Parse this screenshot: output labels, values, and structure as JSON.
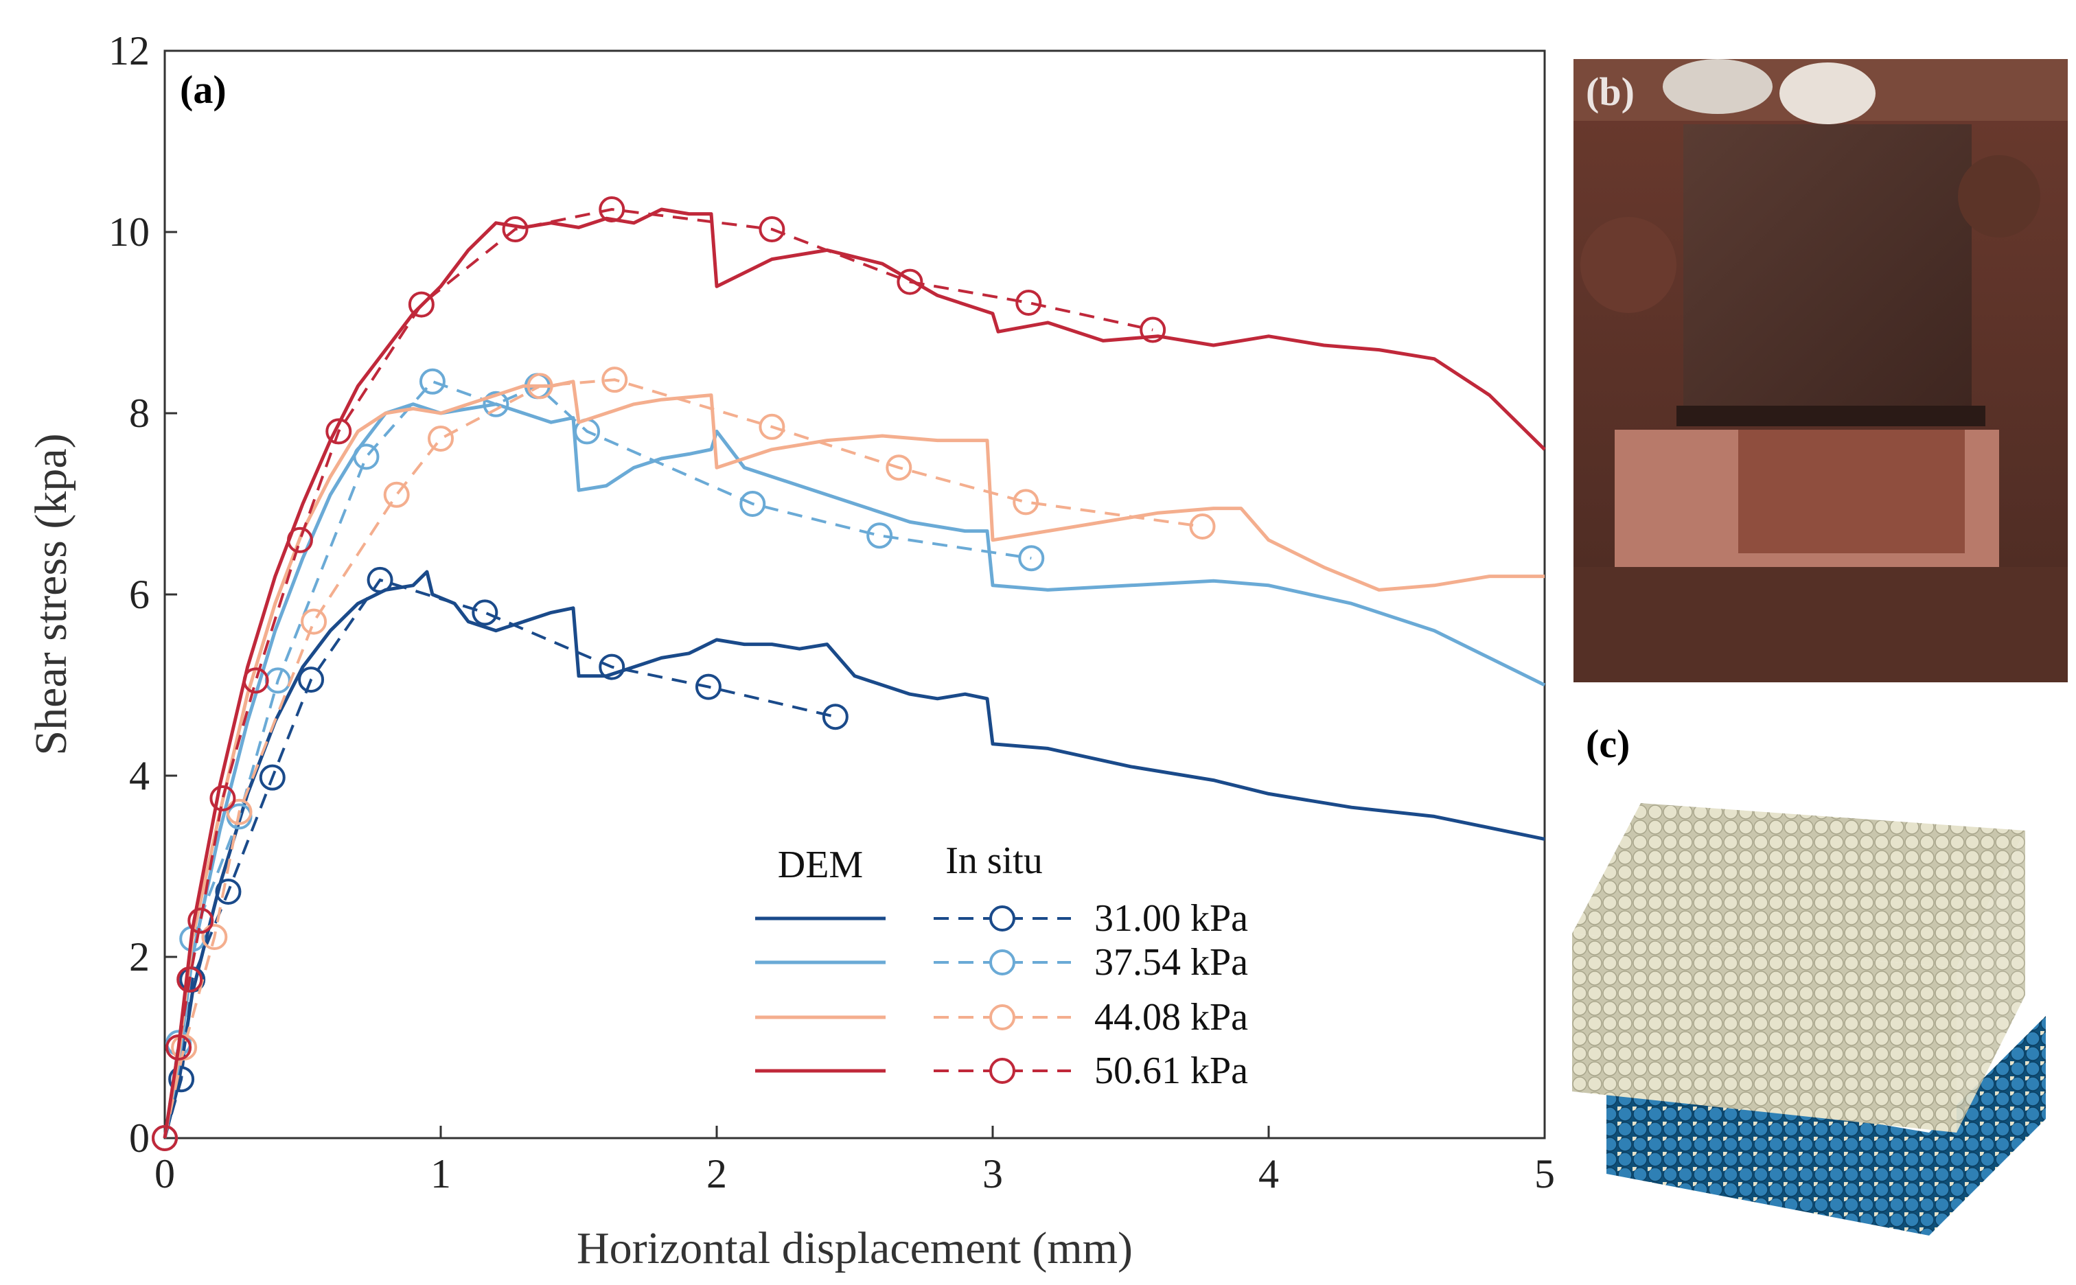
{
  "panels": {
    "a_label": "(a)",
    "b_label": "(b)",
    "c_label": "(c)"
  },
  "legend": {
    "dem_header": "DEM",
    "insitu_header": "In situ"
  },
  "colors": {
    "s31": "#1a4a8a",
    "s37": "#6aaad6",
    "s44": "#f4ae8e",
    "s50": "#c0283a"
  },
  "chart_data": {
    "type": "line",
    "title": "",
    "xlabel": "Horizontal displacement (mm)",
    "ylabel": "Shear stress (kpa)",
    "xlim": [
      0,
      5
    ],
    "ylim": [
      0,
      12
    ],
    "xticks": [
      0,
      1,
      2,
      3,
      4,
      5
    ],
    "yticks": [
      0,
      2,
      4,
      6,
      8,
      10,
      12
    ],
    "series": [
      {
        "name": "31.00 kPa",
        "color": "#1a4a8a",
        "dem": [
          [
            0,
            0
          ],
          [
            0.05,
            0.6
          ],
          [
            0.1,
            1.6
          ],
          [
            0.2,
            2.8
          ],
          [
            0.3,
            3.8
          ],
          [
            0.4,
            4.6
          ],
          [
            0.5,
            5.2
          ],
          [
            0.6,
            5.6
          ],
          [
            0.7,
            5.9
          ],
          [
            0.8,
            6.05
          ],
          [
            0.9,
            6.1
          ],
          [
            0.95,
            6.25
          ],
          [
            0.97,
            6.0
          ],
          [
            1.05,
            5.9
          ],
          [
            1.1,
            5.7
          ],
          [
            1.2,
            5.6
          ],
          [
            1.3,
            5.7
          ],
          [
            1.4,
            5.8
          ],
          [
            1.48,
            5.85
          ],
          [
            1.5,
            5.1
          ],
          [
            1.6,
            5.1
          ],
          [
            1.7,
            5.2
          ],
          [
            1.8,
            5.3
          ],
          [
            1.9,
            5.35
          ],
          [
            2.0,
            5.5
          ],
          [
            2.1,
            5.45
          ],
          [
            2.2,
            5.45
          ],
          [
            2.3,
            5.4
          ],
          [
            2.4,
            5.45
          ],
          [
            2.5,
            5.1
          ],
          [
            2.6,
            5.0
          ],
          [
            2.7,
            4.9
          ],
          [
            2.8,
            4.85
          ],
          [
            2.9,
            4.9
          ],
          [
            2.98,
            4.85
          ],
          [
            3.0,
            4.35
          ],
          [
            3.2,
            4.3
          ],
          [
            3.5,
            4.1
          ],
          [
            3.8,
            3.95
          ],
          [
            4.0,
            3.8
          ],
          [
            4.3,
            3.65
          ],
          [
            4.6,
            3.55
          ],
          [
            5.0,
            3.3
          ]
        ],
        "insitu": [
          [
            0,
            0
          ],
          [
            0.06,
            0.65
          ],
          [
            0.1,
            1.75
          ],
          [
            0.23,
            2.72
          ],
          [
            0.39,
            3.98
          ],
          [
            0.53,
            5.06
          ],
          [
            0.78,
            6.16
          ],
          [
            1.16,
            5.8
          ],
          [
            1.62,
            5.2
          ],
          [
            1.97,
            4.98
          ],
          [
            2.43,
            4.65
          ]
        ]
      },
      {
        "name": "37.54 kPa",
        "color": "#6aaad6",
        "dem": [
          [
            0,
            0
          ],
          [
            0.05,
            0.8
          ],
          [
            0.1,
            2.0
          ],
          [
            0.2,
            3.4
          ],
          [
            0.3,
            4.6
          ],
          [
            0.4,
            5.6
          ],
          [
            0.5,
            6.4
          ],
          [
            0.6,
            7.1
          ],
          [
            0.7,
            7.6
          ],
          [
            0.8,
            8.0
          ],
          [
            0.9,
            8.1
          ],
          [
            1.0,
            8.0
          ],
          [
            1.1,
            8.05
          ],
          [
            1.2,
            8.1
          ],
          [
            1.3,
            8.0
          ],
          [
            1.4,
            7.9
          ],
          [
            1.48,
            7.95
          ],
          [
            1.5,
            7.15
          ],
          [
            1.6,
            7.2
          ],
          [
            1.7,
            7.4
          ],
          [
            1.8,
            7.5
          ],
          [
            1.9,
            7.55
          ],
          [
            1.98,
            7.6
          ],
          [
            2.0,
            7.8
          ],
          [
            2.1,
            7.4
          ],
          [
            2.3,
            7.2
          ],
          [
            2.5,
            7.0
          ],
          [
            2.7,
            6.8
          ],
          [
            2.9,
            6.7
          ],
          [
            2.98,
            6.7
          ],
          [
            3.0,
            6.1
          ],
          [
            3.2,
            6.05
          ],
          [
            3.5,
            6.1
          ],
          [
            3.8,
            6.15
          ],
          [
            4.0,
            6.1
          ],
          [
            4.3,
            5.9
          ],
          [
            4.6,
            5.6
          ],
          [
            4.8,
            5.3
          ],
          [
            5.0,
            5.0
          ]
        ],
        "insitu": [
          [
            0,
            0
          ],
          [
            0.05,
            1.05
          ],
          [
            0.1,
            2.2
          ],
          [
            0.27,
            3.55
          ],
          [
            0.41,
            5.05
          ],
          [
            0.73,
            7.52
          ],
          [
            0.97,
            8.35
          ],
          [
            1.2,
            8.1
          ],
          [
            1.35,
            8.3
          ],
          [
            1.53,
            7.8
          ],
          [
            2.13,
            7.0
          ],
          [
            2.59,
            6.65
          ],
          [
            3.14,
            6.4
          ]
        ]
      },
      {
        "name": "44.08 kPa",
        "color": "#f4ae8e",
        "dem": [
          [
            0,
            0
          ],
          [
            0.05,
            0.9
          ],
          [
            0.1,
            2.2
          ],
          [
            0.2,
            3.6
          ],
          [
            0.3,
            4.9
          ],
          [
            0.4,
            5.9
          ],
          [
            0.5,
            6.7
          ],
          [
            0.6,
            7.3
          ],
          [
            0.7,
            7.8
          ],
          [
            0.8,
            8.0
          ],
          [
            0.9,
            8.05
          ],
          [
            1.0,
            8.0
          ],
          [
            1.1,
            8.1
          ],
          [
            1.2,
            8.2
          ],
          [
            1.3,
            8.3
          ],
          [
            1.4,
            8.3
          ],
          [
            1.48,
            8.35
          ],
          [
            1.5,
            7.9
          ],
          [
            1.6,
            8.0
          ],
          [
            1.7,
            8.1
          ],
          [
            1.8,
            8.15
          ],
          [
            1.98,
            8.2
          ],
          [
            2.0,
            7.4
          ],
          [
            2.2,
            7.6
          ],
          [
            2.4,
            7.7
          ],
          [
            2.6,
            7.75
          ],
          [
            2.8,
            7.7
          ],
          [
            2.98,
            7.7
          ],
          [
            3.0,
            6.6
          ],
          [
            3.2,
            6.7
          ],
          [
            3.4,
            6.8
          ],
          [
            3.6,
            6.9
          ],
          [
            3.8,
            6.95
          ],
          [
            3.9,
            6.95
          ],
          [
            4.0,
            6.6
          ],
          [
            4.2,
            6.3
          ],
          [
            4.4,
            6.05
          ],
          [
            4.6,
            6.1
          ],
          [
            4.8,
            6.2
          ],
          [
            5.0,
            6.2
          ]
        ],
        "insitu": [
          [
            0,
            0
          ],
          [
            0.07,
            1.0
          ],
          [
            0.18,
            2.22
          ],
          [
            0.27,
            3.6
          ],
          [
            0.54,
            5.7
          ],
          [
            0.84,
            7.1
          ],
          [
            1.0,
            7.72
          ],
          [
            1.36,
            8.3
          ],
          [
            1.63,
            8.37
          ],
          [
            2.2,
            7.85
          ],
          [
            2.66,
            7.4
          ],
          [
            3.12,
            7.02
          ],
          [
            3.76,
            6.75
          ]
        ]
      },
      {
        "name": "50.61 kPa",
        "color": "#c0283a",
        "dem": [
          [
            0,
            0
          ],
          [
            0.05,
            1.0
          ],
          [
            0.1,
            2.3
          ],
          [
            0.2,
            3.9
          ],
          [
            0.3,
            5.2
          ],
          [
            0.4,
            6.2
          ],
          [
            0.5,
            7.0
          ],
          [
            0.6,
            7.7
          ],
          [
            0.7,
            8.3
          ],
          [
            0.8,
            8.7
          ],
          [
            0.9,
            9.1
          ],
          [
            1.0,
            9.4
          ],
          [
            1.1,
            9.8
          ],
          [
            1.2,
            10.1
          ],
          [
            1.3,
            10.05
          ],
          [
            1.4,
            10.1
          ],
          [
            1.5,
            10.05
          ],
          [
            1.6,
            10.15
          ],
          [
            1.7,
            10.1
          ],
          [
            1.8,
            10.25
          ],
          [
            1.9,
            10.2
          ],
          [
            1.98,
            10.2
          ],
          [
            2.0,
            9.4
          ],
          [
            2.2,
            9.7
          ],
          [
            2.4,
            9.8
          ],
          [
            2.6,
            9.65
          ],
          [
            2.8,
            9.3
          ],
          [
            3.0,
            9.1
          ],
          [
            3.02,
            8.9
          ],
          [
            3.2,
            9.0
          ],
          [
            3.4,
            8.8
          ],
          [
            3.6,
            8.85
          ],
          [
            3.8,
            8.75
          ],
          [
            4.0,
            8.85
          ],
          [
            4.2,
            8.75
          ],
          [
            4.4,
            8.7
          ],
          [
            4.6,
            8.6
          ],
          [
            4.8,
            8.2
          ],
          [
            5.0,
            7.6
          ]
        ],
        "insitu": [
          [
            0,
            0
          ],
          [
            0.05,
            1.0
          ],
          [
            0.09,
            1.75
          ],
          [
            0.13,
            2.4
          ],
          [
            0.21,
            3.75
          ],
          [
            0.33,
            5.05
          ],
          [
            0.49,
            6.6
          ],
          [
            0.63,
            7.8
          ],
          [
            0.93,
            9.2
          ],
          [
            1.27,
            10.03
          ],
          [
            1.62,
            10.25
          ],
          [
            2.2,
            10.03
          ],
          [
            2.7,
            9.45
          ],
          [
            3.13,
            9.22
          ],
          [
            3.58,
            8.92
          ]
        ]
      }
    ]
  }
}
